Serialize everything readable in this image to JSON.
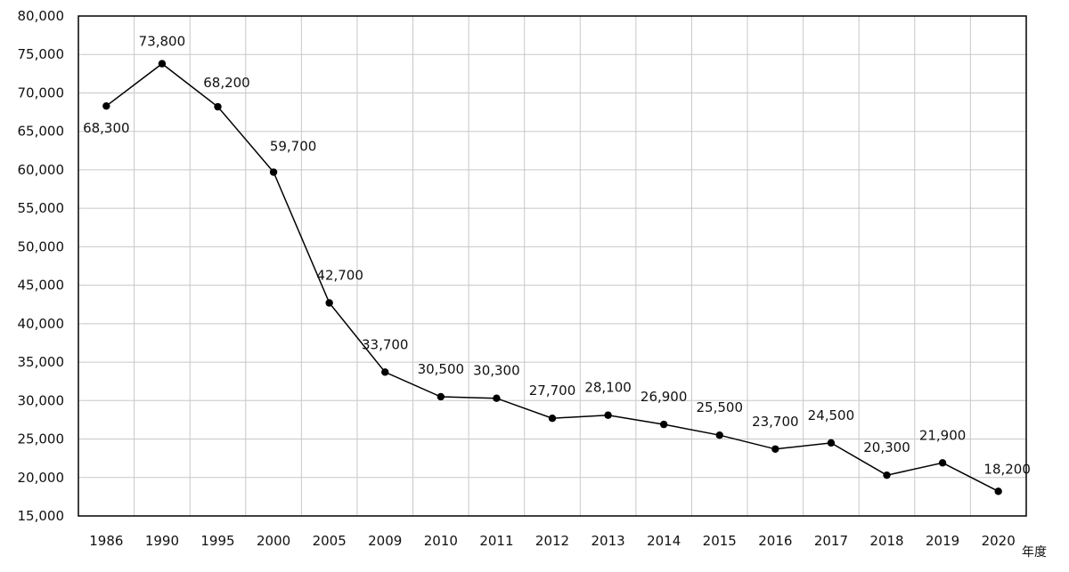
{
  "chart_data": {
    "type": "line",
    "x_unit_label": "年度",
    "categories": [
      "1986",
      "1990",
      "1995",
      "2000",
      "2005",
      "2009",
      "2010",
      "2011",
      "2012",
      "2013",
      "2014",
      "2015",
      "2016",
      "2017",
      "2018",
      "2019",
      "2020"
    ],
    "values": [
      68300,
      73800,
      68200,
      59700,
      42700,
      33700,
      30500,
      30300,
      27700,
      28100,
      26900,
      25500,
      23700,
      24500,
      20300,
      21900,
      18200
    ],
    "data_labels": [
      "68,300",
      "73,800",
      "68,200",
      "59,700",
      "42,700",
      "33,700",
      "30,500",
      "30,300",
      "27,700",
      "28,100",
      "26,900",
      "25,500",
      "23,700",
      "24,500",
      "20,300",
      "21,900",
      "18,200"
    ],
    "ylim": [
      15000,
      80000
    ],
    "y_ticks": [
      15000,
      20000,
      25000,
      30000,
      35000,
      40000,
      45000,
      50000,
      55000,
      60000,
      65000,
      70000,
      75000,
      80000
    ],
    "y_tick_labels": [
      "15,000",
      "20,000",
      "25,000",
      "30,000",
      "35,000",
      "40,000",
      "45,000",
      "50,000",
      "55,000",
      "60,000",
      "65,000",
      "70,000",
      "75,000",
      "80,000"
    ],
    "grid": true,
    "legend": "none",
    "line_color": "#000000",
    "marker_color": "#000000"
  }
}
